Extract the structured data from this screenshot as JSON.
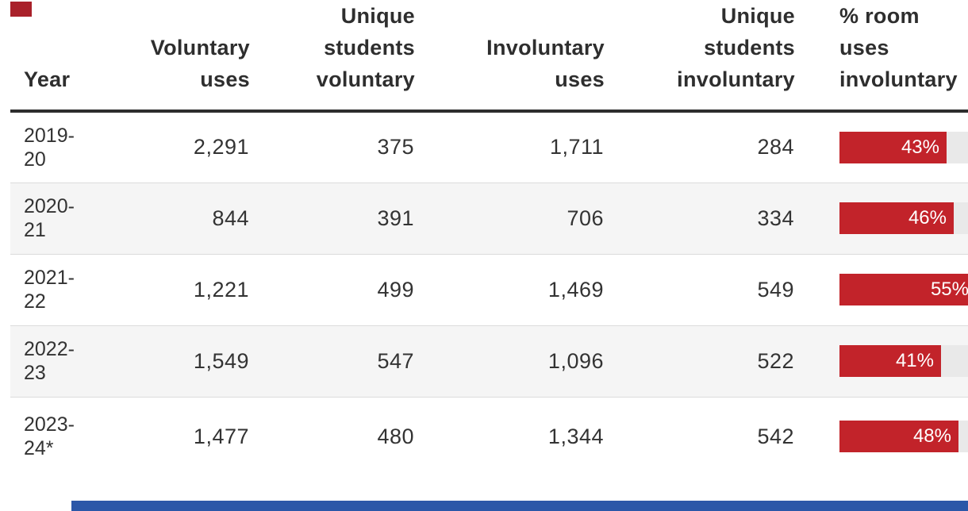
{
  "table": {
    "columns": [
      {
        "id": "year",
        "label": "Year"
      },
      {
        "id": "voluntary_uses",
        "label": "Voluntary uses"
      },
      {
        "id": "unique_students_voluntary",
        "label": "Unique students voluntary"
      },
      {
        "id": "involuntary_uses",
        "label": "Involuntary uses"
      },
      {
        "id": "unique_students_involuntary",
        "label": "Unique students involuntary"
      },
      {
        "id": "pct_room_uses_involuntary",
        "label": "% room uses involuntary"
      }
    ],
    "rows": [
      {
        "year": "2019-20",
        "voluntary_uses": "2,291",
        "unique_students_voluntary": "375",
        "involuntary_uses": "1,711",
        "unique_students_involuntary": "284",
        "pct": 43,
        "pct_label": "43%"
      },
      {
        "year": "2020-21",
        "voluntary_uses": "844",
        "unique_students_voluntary": "391",
        "involuntary_uses": "706",
        "unique_students_involuntary": "334",
        "pct": 46,
        "pct_label": "46%"
      },
      {
        "year": "2021-22",
        "voluntary_uses": "1,221",
        "unique_students_voluntary": "499",
        "involuntary_uses": "1,469",
        "unique_students_involuntary": "549",
        "pct": 55,
        "pct_label": "55%"
      },
      {
        "year": "2022-23",
        "voluntary_uses": "1,549",
        "unique_students_voluntary": "547",
        "involuntary_uses": "1,096",
        "unique_students_involuntary": "522",
        "pct": 41,
        "pct_label": "41%"
      },
      {
        "year": "2023-24*",
        "voluntary_uses": "1,477",
        "unique_students_voluntary": "480",
        "involuntary_uses": "1,344",
        "unique_students_involuntary": "542",
        "pct": 48,
        "pct_label": "48%"
      }
    ]
  },
  "chart_data": {
    "type": "table",
    "title": "",
    "columns": [
      "Year",
      "Voluntary uses",
      "Unique students voluntary",
      "Involuntary uses",
      "Unique students involuntary",
      "% room uses involuntary"
    ],
    "rows": [
      [
        "2019-20",
        "2,291",
        "375",
        "1,711",
        "284",
        "43%"
      ],
      [
        "2020-21",
        "844",
        "391",
        "706",
        "334",
        "46%"
      ],
      [
        "2021-22",
        "1,221",
        "499",
        "1,469",
        "549",
        "55%"
      ],
      [
        "2022-23",
        "1,549",
        "547",
        "1,096",
        "522",
        "41%"
      ],
      [
        "2023-24*",
        "1,477",
        "480",
        "1,344",
        "542",
        "48%"
      ]
    ],
    "embedded_bar_series": {
      "name": "% room uses involuntary",
      "categories": [
        "2019-20",
        "2020-21",
        "2021-22",
        "2022-23",
        "2023-24*"
      ],
      "values": [
        43,
        46,
        55,
        41,
        48
      ],
      "value_suffix": "%",
      "range": [
        0,
        100
      ],
      "bar_color": "#c2232a",
      "track_color": "#e9e9e9",
      "value_labels_inside": true
    },
    "layout": {
      "zebra_rows": true,
      "bar_column_clipped_right": true
    }
  },
  "colors": {
    "bar_red": "#c2232a",
    "track_gray": "#e9e9e9",
    "zebra_row": "#f5f5f5",
    "header_rule": "#2d2d2d",
    "text": "#333333",
    "row_border": "#dcdcdc",
    "percent_text": "#ffffff",
    "top_left_mark_red": "#a9212a",
    "bottom_bar_blue": "#2b57a8"
  }
}
